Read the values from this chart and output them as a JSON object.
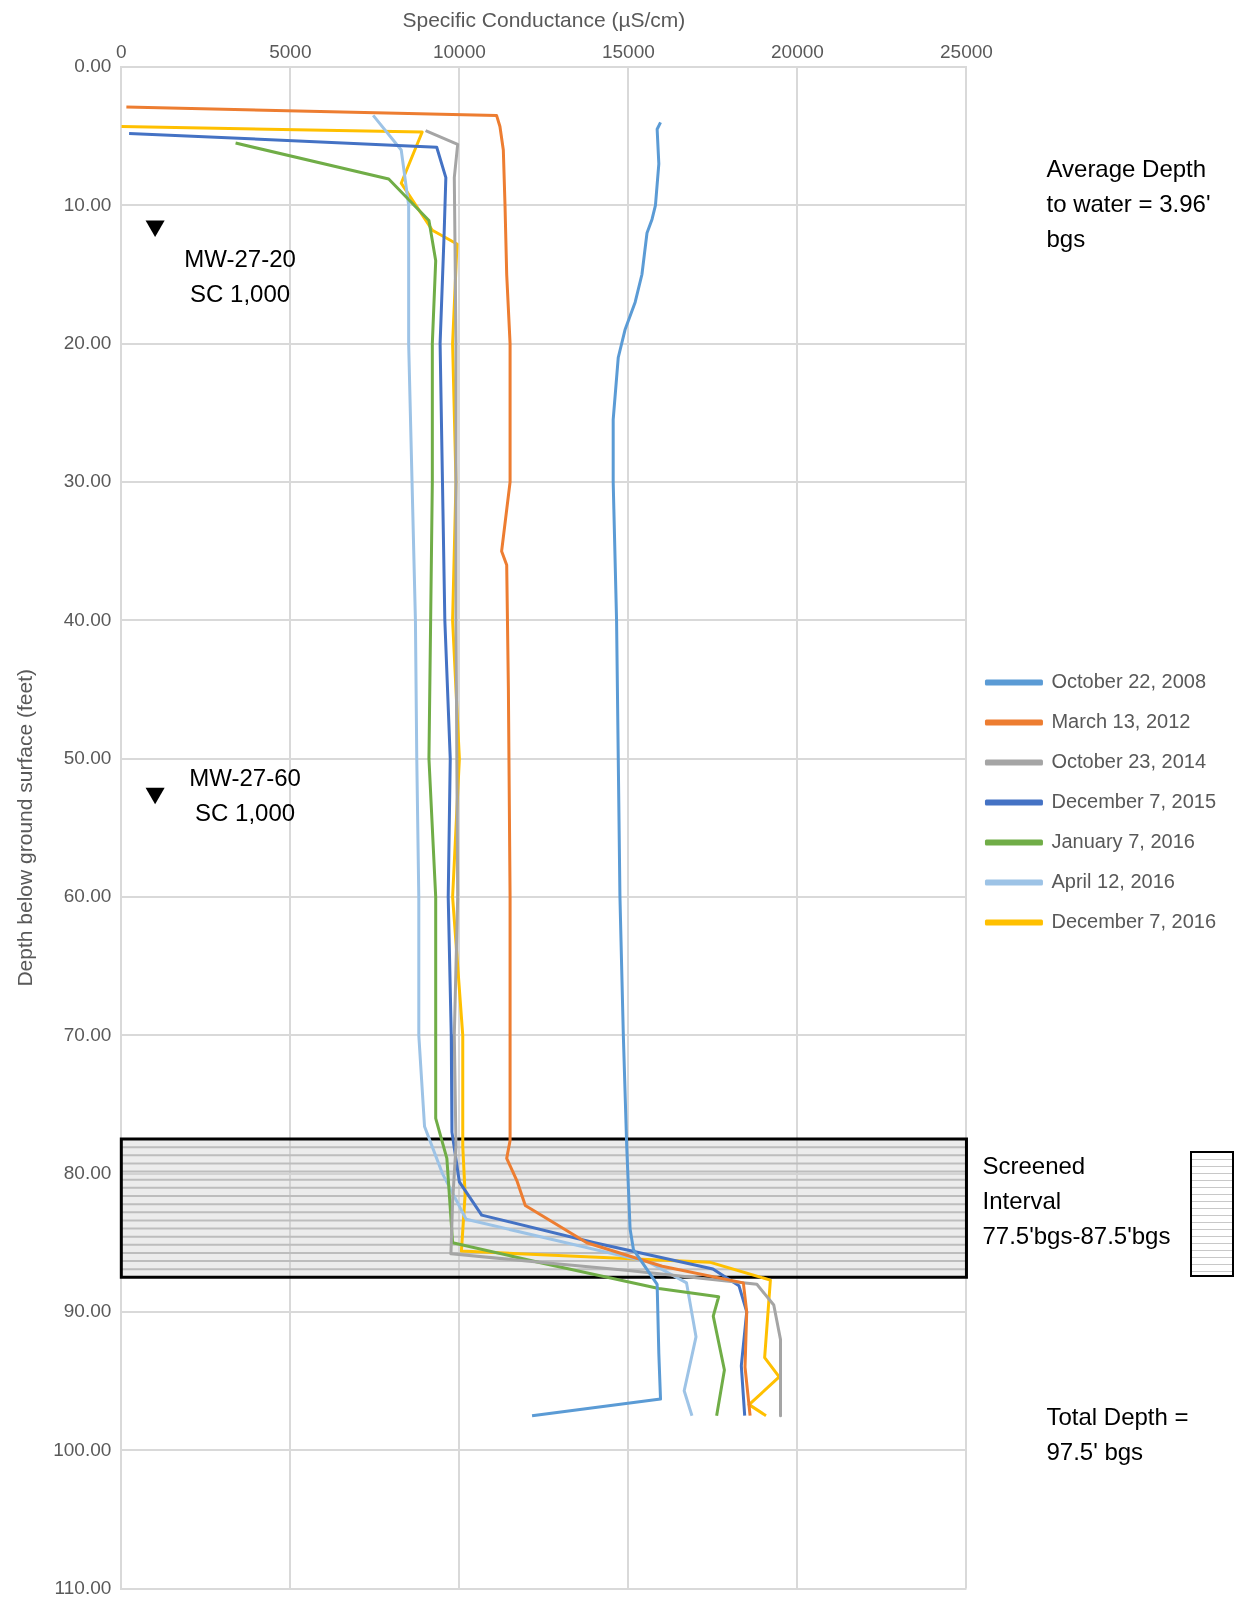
{
  "chart_data": {
    "type": "line",
    "xlabel": "Specific Conductance (µS/cm)",
    "ylabel": "Depth below ground surface (feet)",
    "xlim": [
      0,
      25000
    ],
    "xticks": [
      0,
      5000,
      10000,
      15000,
      20000,
      25000
    ],
    "ylim": [
      110,
      0
    ],
    "yticks": [
      {
        "value": 0,
        "label": "0.00"
      },
      {
        "value": 10,
        "label": "10.00"
      },
      {
        "value": 20,
        "label": "20.00"
      },
      {
        "value": 30,
        "label": "30.00"
      },
      {
        "value": 40,
        "label": "40.00"
      },
      {
        "value": 50,
        "label": "50.00"
      },
      {
        "value": 60,
        "label": "60.00"
      },
      {
        "value": 70,
        "label": "70.00"
      },
      {
        "value": 80,
        "label": "80.00"
      },
      {
        "value": 90,
        "label": "90.00"
      },
      {
        "value": 100,
        "label": "100.00"
      },
      {
        "value": 110,
        "label": "110.00"
      }
    ],
    "grid": true,
    "legend": "right",
    "marker": "none",
    "line_style": "solid",
    "series": [
      {
        "name": "October 22, 2008",
        "color": "#5b9bd5",
        "x": [
          15950,
          15850,
          15900,
          15800,
          15700,
          15550,
          15400,
          15200,
          14900,
          14700,
          14550,
          14550,
          14650,
          14700,
          14750,
          14850,
          14950,
          15050,
          15150,
          15850,
          15900,
          15950,
          12150
        ],
        "values": [
          4,
          4.5,
          7,
          10,
          11,
          12,
          15,
          17,
          19,
          21,
          25.5,
          30,
          40,
          50,
          60,
          70,
          78,
          84,
          85.5,
          88,
          93,
          96.3,
          97.5
        ]
      },
      {
        "name": "March 13, 2012",
        "color": "#ed7d31",
        "x": [
          150,
          11100,
          11200,
          11300,
          11350,
          11400,
          11500,
          11500,
          11250,
          11400,
          11450,
          11500,
          11500,
          11400,
          11700,
          11950,
          13770,
          16000,
          18400,
          18500,
          18450,
          18600
        ],
        "values": [
          2.9,
          3.5,
          4.3,
          6,
          10,
          15,
          20,
          30,
          35,
          36,
          45,
          60,
          77.6,
          78.9,
          80.5,
          82.3,
          85,
          86.7,
          87.9,
          90,
          94,
          97.5
        ]
      },
      {
        "name": "October 23, 2014",
        "color": "#a5a5a5",
        "x": [
          9000,
          9950,
          9850,
          9900,
          9900,
          9950,
          9850,
          9900,
          9800,
          9750,
          15000,
          18800,
          19300,
          19500,
          19500
        ],
        "values": [
          4.6,
          5.6,
          8,
          20,
          40,
          60,
          70,
          78,
          82,
          85.8,
          87,
          88,
          89.5,
          92,
          97.5
        ]
      },
      {
        "name": "December 7, 2015",
        "color": "#4472c4",
        "x": [
          230,
          9330,
          9600,
          9550,
          9430,
          9500,
          9570,
          9730,
          9670,
          9760,
          9780,
          10000,
          10660,
          14000,
          17500,
          18270,
          18500,
          18340,
          18440
        ],
        "values": [
          4.8,
          5.8,
          8,
          12,
          20,
          30,
          40,
          50,
          60,
          70,
          77,
          80.6,
          83,
          85,
          86.9,
          88.1,
          90,
          93.9,
          97.5
        ]
      },
      {
        "name": "January 7, 2016",
        "color": "#70ad47",
        "x": [
          3380,
          7910,
          9100,
          9300,
          9200,
          9200,
          9150,
          9100,
          9300,
          9300,
          9630,
          9800,
          12500,
          15900,
          17670,
          17510,
          17840,
          17610
        ],
        "values": [
          5.5,
          8.1,
          11.1,
          14,
          20,
          30,
          40,
          50,
          60,
          76,
          78.9,
          85,
          86.5,
          88.3,
          88.9,
          90.3,
          94.2,
          97.5
        ]
      },
      {
        "name": "April 12, 2016",
        "color": "#9dc3e6",
        "x": [
          7450,
          8280,
          8500,
          8500,
          8600,
          8700,
          8740,
          8800,
          8800,
          8970,
          9500,
          10200,
          15600,
          16720,
          17000,
          16650,
          16880
        ],
        "values": [
          3.5,
          6,
          10,
          20,
          30,
          40,
          50,
          60,
          70,
          76.6,
          80,
          83.3,
          86.4,
          87.9,
          91.8,
          95.7,
          97.5
        ]
      },
      {
        "name": "December 7, 2016",
        "color": "#ffc000",
        "x": [
          0,
          8900,
          8280,
          9200,
          9930,
          9800,
          9900,
          9800,
          10000,
          9800,
          10100,
          10100,
          10170,
          10060,
          17400,
          19200,
          19030,
          19460,
          18570,
          19070
        ],
        "values": [
          4.3,
          4.7,
          8.4,
          11.8,
          12.8,
          20,
          30,
          40,
          50,
          60,
          70,
          78,
          81.5,
          85.6,
          86.4,
          87.7,
          93.3,
          94.7,
          96.7,
          97.5
        ]
      },
      {
        "type": "scatter",
        "color": "#000000",
        "marker": "triangle",
        "x": [
          1000,
          1000
        ],
        "values": [
          11.5,
          52.5
        ]
      }
    ],
    "bands": [
      {
        "axis": "y",
        "from": 77.5,
        "to": 87.5,
        "label": "Screened Interval 77.5'bgs-87.5'bgs"
      }
    ],
    "annotations": [
      "Average Depth to water = 3.96' bgs",
      "Total Depth = 97.5' bgs",
      {
        "text": "MW-27-20 SC 1,000",
        "x": 1000,
        "y": 11.5
      },
      {
        "text": "MW-27-60 SC 1,000",
        "x": 1000,
        "y": 52.5
      }
    ]
  }
}
